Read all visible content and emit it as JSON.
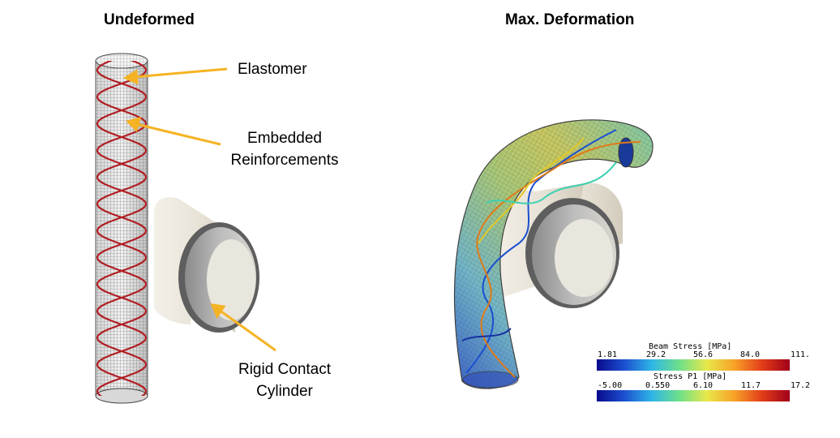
{
  "titles": {
    "left": "Undeformed",
    "right": "Max. Deformation"
  },
  "callouts": {
    "elastomer": "Elastomer",
    "reinforcements_line1": "Embedded",
    "reinforcements_line2": "Reinforcements",
    "cylinder_line1": "Rigid Contact",
    "cylinder_line2": "Cylinder"
  },
  "colors": {
    "callout_arrow": "#f5b324",
    "reinforcement": "#b01e23",
    "mesh": "#4a4a4a",
    "cylinder_outer": "#ece8de",
    "cylinder_inner": "#a5a5a5",
    "cylinder_rim": "#5e5e5e"
  },
  "colorbars": {
    "beam": {
      "title": "Beam Stress [MPa]",
      "ticks": [
        "1.81",
        "29.2",
        "56.6",
        "84.0",
        "111."
      ]
    },
    "p1": {
      "title": "Stress P1 [MPa]",
      "ticks": [
        "-5.00",
        "0.550",
        "6.10",
        "11.7",
        "17.2"
      ]
    },
    "colormap": [
      "#0a0a8c",
      "#1c50d0",
      "#2fb6e6",
      "#6ee08a",
      "#e8e84a",
      "#f8a028",
      "#e23d18",
      "#a0001a"
    ]
  }
}
